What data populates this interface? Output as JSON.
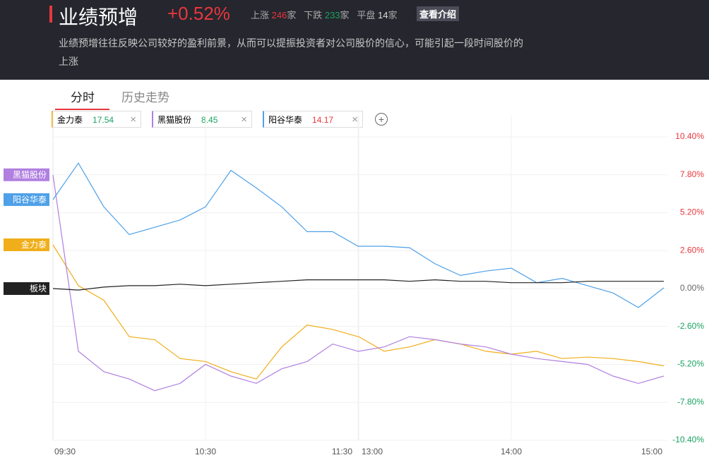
{
  "header": {
    "title": "业绩预增",
    "change": "+0.52%",
    "up_label": "上涨",
    "up_count": 246,
    "down_label": "下跌",
    "down_count": 233,
    "flat_label": "平盘",
    "flat_count": 14,
    "unit": "家",
    "button": "查看介绍",
    "description": "业绩预增往往反映公司较好的盈利前景，从而可以提振投资者对公司股价的信心，可能引起一段时间股价的上涨"
  },
  "tabs": [
    "分时",
    "历史走势"
  ],
  "chart_data": {
    "type": "line",
    "categories": [
      "09:30",
      null,
      null,
      null,
      null,
      null,
      "10:30",
      null,
      null,
      null,
      null,
      null,
      "11:30",
      "13:00",
      null,
      null,
      null,
      null,
      null,
      "14:00",
      null,
      null,
      null,
      null,
      null,
      "15:00"
    ],
    "ylim": [
      -10.4,
      10.4
    ],
    "yticks": [
      {
        "value": 10.4,
        "label": "10.40%"
      },
      {
        "value": 7.8,
        "label": "7.80%"
      },
      {
        "value": 5.2,
        "label": "5.20%"
      },
      {
        "value": 2.6,
        "label": "2.60%"
      },
      {
        "value": 0,
        "label": "0.00%"
      },
      {
        "value": -2.6,
        "label": "-2.60%"
      },
      {
        "value": -5.2,
        "label": "-5.20%"
      },
      {
        "value": -7.8,
        "label": "-7.80%"
      },
      {
        "value": -10.4,
        "label": "-10.40%"
      }
    ],
    "grid": true,
    "series": [
      {
        "name": "金力泰",
        "price": 17.54,
        "price_color": "#1aa260",
        "color": "#f0ae1a",
        "values": [
          3.0,
          0.2,
          -0.8,
          -3.3,
          -3.5,
          -4.8,
          -5.0,
          -5.7,
          -6.2,
          -4.0,
          -2.5,
          -2.8,
          -3.3,
          -3.3,
          -4.3,
          -4.0,
          -3.5,
          -3.8,
          -4.3,
          -4.5,
          -4.3,
          -4.8,
          -4.7,
          -4.8,
          -5.0,
          -5.3
        ]
      },
      {
        "name": "黑猫股份",
        "price": 8.45,
        "price_color": "#1aa260",
        "color": "#b07fe0",
        "values": [
          7.8,
          -4.3,
          -5.7,
          -6.2,
          -7.0,
          -6.5,
          -5.2,
          -6.0,
          -6.5,
          -5.5,
          -5.0,
          -3.8,
          -4.3,
          -4.3,
          -4.0,
          -3.3,
          -3.5,
          -3.8,
          -4.0,
          -4.5,
          -4.8,
          -5.0,
          -5.2,
          -6.0,
          -6.5,
          -6.0
        ]
      },
      {
        "name": "阳谷华泰",
        "price": 14.17,
        "price_color": "#e8373e",
        "color": "#4ea0e8",
        "values": [
          6.1,
          8.6,
          5.6,
          3.7,
          4.2,
          4.7,
          5.6,
          8.1,
          6.9,
          5.6,
          3.9,
          3.9,
          2.9,
          2.9,
          2.9,
          2.8,
          1.7,
          0.9,
          1.2,
          1.4,
          0.4,
          0.7,
          0.2,
          -0.3,
          -1.3,
          0.05
        ]
      },
      {
        "name": "板块",
        "color": "#222222",
        "values": [
          0,
          -0.1,
          0.1,
          0.2,
          0.2,
          0.3,
          0.2,
          0.3,
          0.4,
          0.5,
          0.6,
          0.6,
          0.6,
          0.6,
          0.6,
          0.5,
          0.6,
          0.5,
          0.5,
          0.4,
          0.4,
          0.4,
          0.5,
          0.5,
          0.5,
          0.5
        ]
      }
    ]
  }
}
